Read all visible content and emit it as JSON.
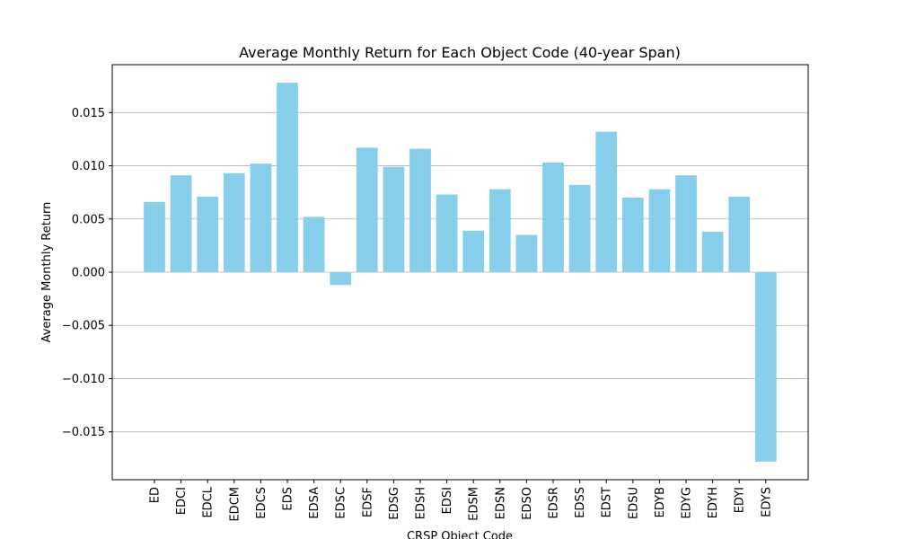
{
  "chart_data": {
    "type": "bar",
    "title": "Average Monthly Return for Each Object Code (40-year Span)",
    "xlabel": "CRSP Object Code",
    "ylabel": "Average Monthly Return",
    "categories": [
      "ED",
      "EDCI",
      "EDCL",
      "EDCM",
      "EDCS",
      "EDS",
      "EDSA",
      "EDSC",
      "EDSF",
      "EDSG",
      "EDSH",
      "EDSI",
      "EDSM",
      "EDSN",
      "EDSO",
      "EDSR",
      "EDSS",
      "EDST",
      "EDSU",
      "EDYB",
      "EDYG",
      "EDYH",
      "EDYI",
      "EDYS"
    ],
    "values": [
      0.0066,
      0.0091,
      0.0071,
      0.0093,
      0.0102,
      0.0178,
      0.0052,
      -0.0012,
      0.0117,
      0.0099,
      0.0116,
      0.0073,
      0.0039,
      0.0078,
      0.0035,
      0.0103,
      0.0082,
      0.0132,
      0.007,
      0.0078,
      0.0091,
      0.0038,
      0.0071,
      -0.0178
    ],
    "ylim": [
      -0.0195,
      0.0195
    ],
    "yticks": [
      -0.015,
      -0.01,
      -0.005,
      0.0,
      0.005,
      0.01,
      0.015
    ],
    "ytick_labels": [
      "−0.015",
      "−0.010",
      "−0.005",
      "0.000",
      "0.005",
      "0.010",
      "0.015"
    ],
    "grid": "horizontal",
    "bar_color": "#87ceeb"
  }
}
